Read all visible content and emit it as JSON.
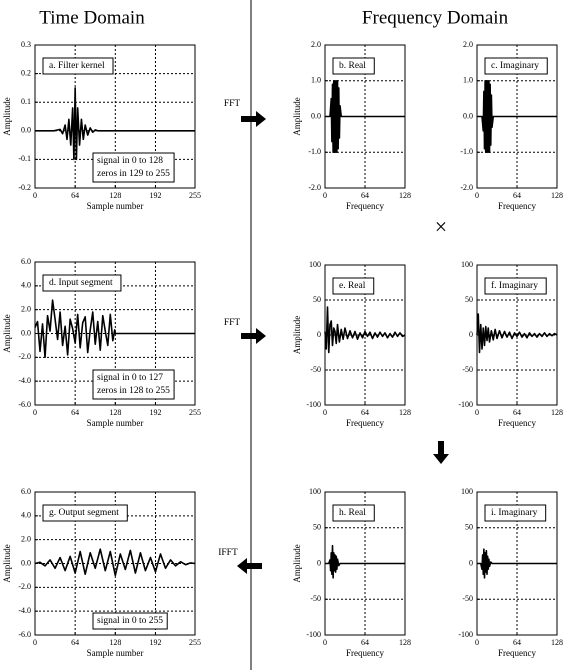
{
  "page": {
    "titles": [
      "Time Domain",
      "Frequency Domain"
    ],
    "operations": [
      "FFT",
      "FFT",
      "IFFT"
    ],
    "multiply": "×"
  },
  "chart_data": [
    {
      "type": "line",
      "label": "a.  Filter kernel",
      "xlabel": "Sample number",
      "ylabel": "Amplitude",
      "color": "#000000",
      "grid": true,
      "annotation": [
        "signal in 0 to 128",
        "zeros in 129 to 255"
      ],
      "xlim": [
        0,
        255
      ],
      "xticks": [
        0,
        64,
        128,
        192,
        255
      ],
      "ylim": [
        -0.2,
        0.3
      ],
      "yticks": [
        -0.2,
        -0.1,
        {
          "value": 0,
          "label": "0.0"
        },
        0.1,
        0.2,
        0.3
      ],
      "x": [
        0,
        30,
        40,
        44,
        48,
        51,
        54,
        57,
        60,
        62,
        64,
        66,
        68,
        71,
        74,
        77,
        80,
        84,
        88,
        92,
        96,
        100,
        255
      ],
      "values": [
        0,
        0,
        0.005,
        -0.01,
        0.02,
        -0.03,
        0.04,
        -0.05,
        0.08,
        -0.1,
        0.15,
        -0.1,
        0.08,
        -0.05,
        0.04,
        -0.03,
        0.02,
        -0.015,
        0.01,
        -0.005,
        0.003,
        0,
        0
      ]
    },
    {
      "type": "line",
      "label": "b.  Real",
      "xlabel": "Frequency",
      "ylabel": "Amplitude",
      "color": "#000000",
      "grid": true,
      "xlim": [
        0,
        128
      ],
      "xticks": [
        0,
        64,
        128
      ],
      "ylim": [
        -2,
        2
      ],
      "yticks": [
        {
          "value": -2,
          "label": "-2.0"
        },
        {
          "value": -1,
          "label": "-1.0"
        },
        {
          "value": 0,
          "label": "0.0"
        },
        {
          "value": 1,
          "label": "1.0"
        },
        {
          "value": 2,
          "label": "2.0"
        }
      ],
      "x": [
        0,
        8,
        10,
        11,
        12,
        13,
        14,
        15,
        16,
        17,
        18,
        19,
        20,
        21,
        22,
        23,
        24,
        26,
        128
      ],
      "values": [
        0,
        0,
        0.5,
        -0.7,
        0.9,
        -1,
        1,
        -1,
        1,
        -1,
        1,
        -1,
        1,
        -0.9,
        0.8,
        -0.6,
        0.3,
        0,
        0
      ]
    },
    {
      "type": "line",
      "label": "c.  Imaginary",
      "xlabel": "Frequency",
      "color": "#000000",
      "grid": true,
      "xlim": [
        0,
        128
      ],
      "xticks": [
        0,
        64,
        128
      ],
      "ylim": [
        -2,
        2
      ],
      "yticks": [
        {
          "value": -2,
          "label": "-2.0"
        },
        {
          "value": -1,
          "label": "-1.0"
        },
        {
          "value": 0,
          "label": "0.0"
        },
        {
          "value": 1,
          "label": "1.0"
        },
        {
          "value": 2,
          "label": "2.0"
        }
      ],
      "x": [
        0,
        8,
        10,
        11,
        12,
        13,
        14,
        15,
        16,
        17,
        18,
        19,
        20,
        21,
        22,
        23,
        24,
        26,
        128
      ],
      "values": [
        0,
        0,
        -0.4,
        0.7,
        -0.9,
        1,
        -1,
        1,
        -1,
        1,
        -1,
        1,
        -1,
        0.9,
        -0.8,
        0.6,
        -0.3,
        0,
        0
      ]
    },
    {
      "type": "line",
      "label": "d.  Input segment",
      "xlabel": "Sample number",
      "ylabel": "Amplitude",
      "color": "#000000",
      "grid": true,
      "annotation": [
        "signal in 0 to 127",
        "zeros in 128 to 255"
      ],
      "xlim": [
        0,
        255
      ],
      "xticks": [
        0,
        64,
        128,
        192,
        255
      ],
      "ylim": [
        -6,
        6
      ],
      "yticks": [
        {
          "value": -6,
          "label": "-6.0"
        },
        {
          "value": -4,
          "label": "-4.0"
        },
        {
          "value": -2,
          "label": "-2.0"
        },
        {
          "value": 0,
          "label": "0.0"
        },
        {
          "value": 2,
          "label": "2.0"
        },
        {
          "value": 4,
          "label": "4.0"
        },
        {
          "value": 6,
          "label": "6.0"
        }
      ],
      "x": [
        0,
        4,
        8,
        12,
        16,
        20,
        24,
        28,
        32,
        36,
        40,
        44,
        48,
        52,
        56,
        60,
        64,
        68,
        72,
        76,
        80,
        84,
        88,
        92,
        96,
        100,
        104,
        108,
        112,
        116,
        120,
        124,
        127,
        128,
        255
      ],
      "values": [
        0.5,
        1.0,
        -1.5,
        0.8,
        -2.0,
        1.5,
        0.2,
        2.8,
        1.2,
        -0.5,
        1.8,
        -1.0,
        0.6,
        -1.8,
        1.2,
        0.4,
        -0.8,
        1.6,
        -1.2,
        0.9,
        1.4,
        -1.6,
        0.3,
        1.8,
        -0.9,
        1.0,
        -1.4,
        1.5,
        0.2,
        -1.0,
        1.6,
        -0.6,
        0.3,
        0,
        0
      ]
    },
    {
      "type": "line",
      "label": "e.  Real",
      "xlabel": "Frequency",
      "ylabel": "Amplitude",
      "color": "#000000",
      "grid": true,
      "xlim": [
        0,
        128
      ],
      "xticks": [
        0,
        64,
        128
      ],
      "ylim": [
        -100,
        100
      ],
      "yticks": [
        -100,
        -50,
        0,
        50,
        100
      ],
      "x": [
        0,
        2,
        4,
        6,
        8,
        10,
        12,
        14,
        16,
        18,
        20,
        23,
        26,
        29,
        32,
        36,
        40,
        44,
        48,
        52,
        56,
        60,
        64,
        68,
        72,
        76,
        80,
        84,
        88,
        92,
        96,
        100,
        104,
        108,
        112,
        116,
        120,
        124,
        128
      ],
      "values": [
        5,
        -20,
        40,
        -25,
        15,
        20,
        -15,
        10,
        5,
        -12,
        15,
        -10,
        8,
        -6,
        10,
        -5,
        6,
        -4,
        5,
        -6,
        3,
        -4,
        5,
        -2,
        4,
        -5,
        3,
        -3,
        4,
        -2,
        3,
        -4,
        2,
        -3,
        4,
        -2,
        3,
        -2,
        0
      ]
    },
    {
      "type": "line",
      "label": "f.  Imaginary",
      "xlabel": "Frequency",
      "color": "#000000",
      "grid": true,
      "xlim": [
        0,
        128
      ],
      "xticks": [
        0,
        64,
        128
      ],
      "ylim": [
        -100,
        100
      ],
      "yticks": [
        -100,
        -50,
        0,
        50,
        100
      ],
      "x": [
        0,
        2,
        4,
        6,
        8,
        10,
        12,
        14,
        16,
        18,
        20,
        23,
        26,
        29,
        32,
        36,
        40,
        44,
        48,
        52,
        56,
        60,
        64,
        68,
        72,
        76,
        80,
        84,
        88,
        92,
        96,
        100,
        104,
        108,
        112,
        116,
        120,
        124,
        128
      ],
      "values": [
        0,
        30,
        -25,
        15,
        -20,
        10,
        -15,
        12,
        -8,
        10,
        -10,
        6,
        -7,
        8,
        -5,
        6,
        -4,
        5,
        -3,
        4,
        -5,
        3,
        -2,
        4,
        -3,
        2,
        -4,
        3,
        -2,
        2,
        -3,
        2,
        -2,
        3,
        -2,
        2,
        -1,
        2,
        0
      ]
    },
    {
      "type": "line",
      "label": "g.  Output segment",
      "xlabel": "Sample number",
      "ylabel": "Amplitude",
      "color": "#000000",
      "grid": true,
      "annotation": [
        "signal in 0 to 255"
      ],
      "xlim": [
        0,
        255
      ],
      "xticks": [
        0,
        64,
        128,
        192,
        255
      ],
      "ylim": [
        -6,
        6
      ],
      "yticks": [
        {
          "value": -6,
          "label": "-6.0"
        },
        {
          "value": -4,
          "label": "-4.0"
        },
        {
          "value": -2,
          "label": "-2.0"
        },
        {
          "value": 0,
          "label": "0.0"
        },
        {
          "value": 2,
          "label": "2.0"
        },
        {
          "value": 4,
          "label": "4.0"
        },
        {
          "value": 6,
          "label": "6.0"
        }
      ],
      "x": [
        0,
        8,
        16,
        24,
        32,
        40,
        48,
        56,
        64,
        72,
        80,
        88,
        96,
        104,
        112,
        120,
        128,
        136,
        144,
        152,
        160,
        168,
        176,
        184,
        192,
        200,
        208,
        216,
        224,
        232,
        240,
        248,
        255
      ],
      "values": [
        0,
        0.1,
        -0.2,
        0.3,
        -0.4,
        0.5,
        -0.6,
        0.6,
        -0.8,
        1.0,
        -0.9,
        0.9,
        -0.4,
        1.2,
        -0.6,
        1.0,
        -1.0,
        0.8,
        -0.5,
        1.1,
        -0.8,
        0.9,
        -0.6,
        0.5,
        -0.7,
        0.8,
        -0.4,
        0.3,
        -0.2,
        0.15,
        -0.1,
        0.05,
        0
      ]
    },
    {
      "type": "line",
      "label": "h.  Real",
      "xlabel": "Frequency",
      "ylabel": "Amplitude",
      "color": "#000000",
      "grid": true,
      "xlim": [
        0,
        128
      ],
      "xticks": [
        0,
        64,
        128
      ],
      "ylim": [
        -100,
        100
      ],
      "yticks": [
        -100,
        -50,
        0,
        50,
        100
      ],
      "x": [
        0,
        6,
        8,
        9,
        10,
        11,
        12,
        13,
        14,
        15,
        16,
        17,
        18,
        19,
        20,
        22,
        24,
        128
      ],
      "values": [
        0,
        0,
        5,
        -10,
        15,
        -15,
        25,
        -20,
        15,
        -10,
        12,
        -12,
        10,
        -8,
        6,
        -3,
        0,
        0
      ]
    },
    {
      "type": "line",
      "label": "i.  Imaginary",
      "xlabel": "Frequency",
      "color": "#000000",
      "grid": true,
      "xlim": [
        0,
        128
      ],
      "xticks": [
        0,
        64,
        128
      ],
      "ylim": [
        -100,
        100
      ],
      "yticks": [
        -100,
        -50,
        0,
        50,
        100
      ],
      "x": [
        0,
        6,
        8,
        9,
        10,
        11,
        12,
        13,
        14,
        15,
        16,
        17,
        18,
        19,
        20,
        22,
        24,
        128
      ],
      "values": [
        0,
        0,
        -8,
        12,
        -15,
        20,
        -20,
        15,
        -12,
        18,
        -15,
        10,
        -8,
        6,
        -4,
        2,
        0,
        0
      ]
    }
  ]
}
